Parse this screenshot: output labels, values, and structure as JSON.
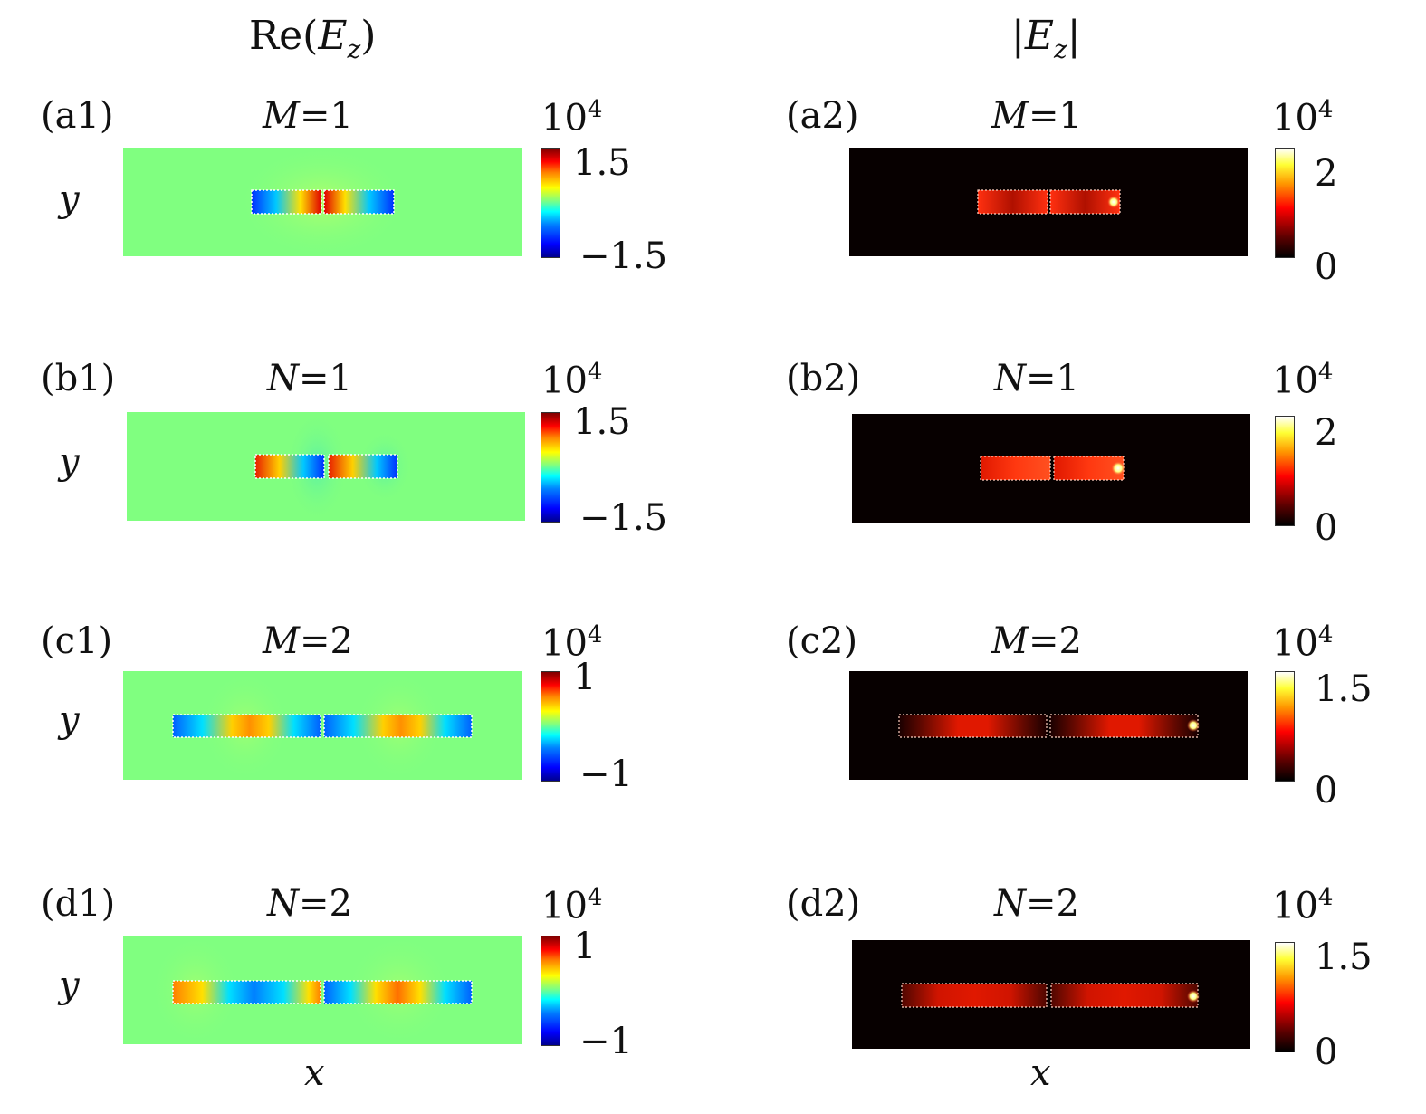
{
  "columns": [
    {
      "title": "Re(E_z)"
    },
    {
      "title": "|E_z|"
    }
  ],
  "panels": [
    {
      "label": "(a1)",
      "var": "M",
      "eq": "=1",
      "colormap": "jet",
      "exp": "10^4",
      "cb_max": "1.5",
      "cb_min": "−1.5"
    },
    {
      "label": "(a2)",
      "var": "M",
      "eq": "=1",
      "colormap": "hot",
      "exp": "10^4",
      "cb_max": "2",
      "cb_min": "0"
    },
    {
      "label": "(b1)",
      "var": "N",
      "eq": "=1",
      "colormap": "jet",
      "exp": "10^4",
      "cb_max": "1.5",
      "cb_min": "−1.5"
    },
    {
      "label": "(b2)",
      "var": "N",
      "eq": "=1",
      "colormap": "hot",
      "exp": "10^4",
      "cb_max": "2",
      "cb_min": "0"
    },
    {
      "label": "(c1)",
      "var": "M",
      "eq": "=2",
      "colormap": "jet",
      "exp": "10^4",
      "cb_max": "1",
      "cb_min": "−1"
    },
    {
      "label": "(c2)",
      "var": "M",
      "eq": "=2",
      "colormap": "hot",
      "exp": "10^4",
      "cb_max": "1.5",
      "cb_min": "0"
    },
    {
      "label": "(d1)",
      "var": "N",
      "eq": "=2",
      "colormap": "jet",
      "exp": "10^4",
      "cb_max": "1",
      "cb_min": "−1"
    },
    {
      "label": "(d2)",
      "var": "N",
      "eq": "=2",
      "colormap": "hot",
      "exp": "10^4",
      "cb_max": "1.5",
      "cb_min": "0"
    }
  ],
  "axes": {
    "x": "x",
    "y": "y"
  },
  "chart_data": {
    "type": "heatmap",
    "layout": "4 rows x 2 columns",
    "colormaps": {
      "Re(E_z)": "jet",
      "|E_z|": "hot"
    },
    "scale_factor": "10^4",
    "panels": [
      {
        "id": "a1",
        "quantity": "Re(E_z)",
        "mode": "M=1",
        "clim": [
          -1.5,
          1.5
        ]
      },
      {
        "id": "a2",
        "quantity": "|E_z|",
        "mode": "M=1",
        "clim": [
          0,
          2
        ]
      },
      {
        "id": "b1",
        "quantity": "Re(E_z)",
        "mode": "N=1",
        "clim": [
          -1.5,
          1.5
        ]
      },
      {
        "id": "b2",
        "quantity": "|E_z|",
        "mode": "N=1",
        "clim": [
          0,
          2
        ]
      },
      {
        "id": "c1",
        "quantity": "Re(E_z)",
        "mode": "M=2",
        "clim": [
          -1,
          1
        ]
      },
      {
        "id": "c2",
        "quantity": "|E_z|",
        "mode": "M=2",
        "clim": [
          0,
          1.5
        ]
      },
      {
        "id": "d1",
        "quantity": "Re(E_z)",
        "mode": "N=2",
        "clim": [
          -1,
          1
        ]
      },
      {
        "id": "d2",
        "quantity": "|E_z|",
        "mode": "N=2",
        "clim": [
          0,
          1.5
        ]
      }
    ],
    "xlabel": "x",
    "ylabel": "y"
  }
}
